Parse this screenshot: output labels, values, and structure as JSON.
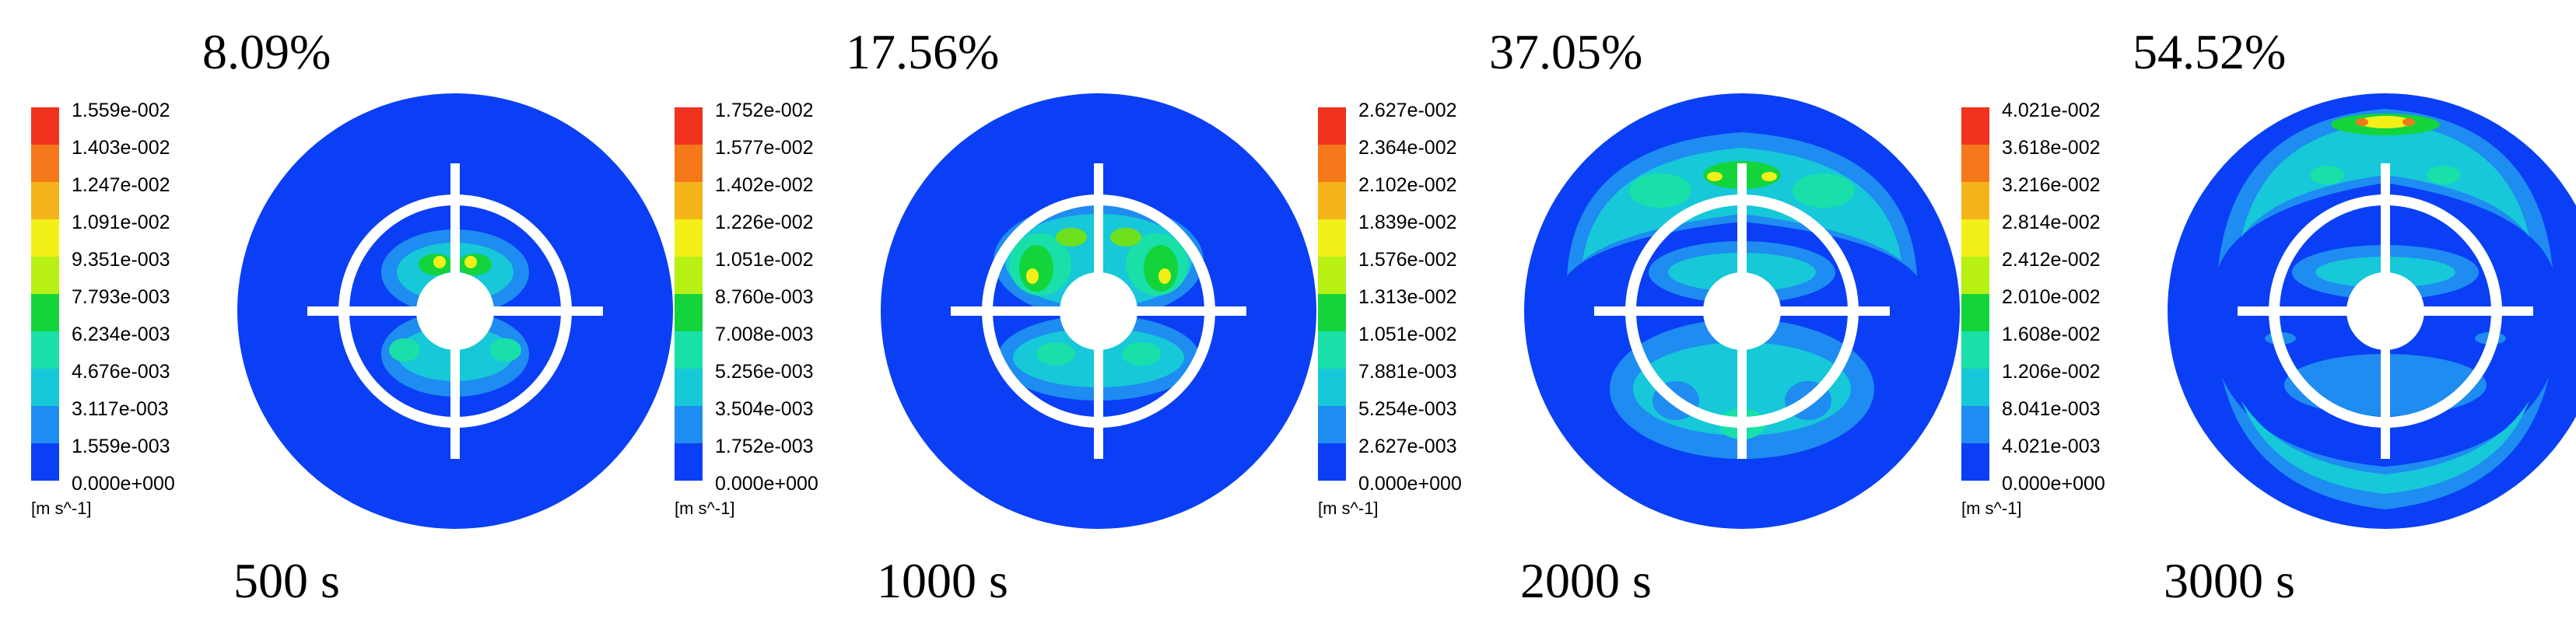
{
  "colors": {
    "background": "#0a3ff5",
    "scale": [
      "#0a3ff5",
      "#1e8cf0",
      "#16c8d8",
      "#18e0a8",
      "#14d43c",
      "#6ee01e",
      "#b8f014",
      "#f2f018",
      "#f5b41a",
      "#f5781a",
      "#f0321e"
    ],
    "fixture": "#ffffff"
  },
  "unit_label": "[m s^-1]",
  "panels": [
    {
      "percent": "8.09%",
      "time": "500 s",
      "legend": [
        "1.559e-002",
        "1.403e-002",
        "1.247e-002",
        "1.091e-002",
        "9.351e-003",
        "7.793e-003",
        "6.234e-003",
        "4.676e-003",
        "3.117e-003",
        "1.559e-003",
        "0.000e+000"
      ]
    },
    {
      "percent": "17.56%",
      "time": "1000 s",
      "legend": [
        "1.752e-002",
        "1.577e-002",
        "1.402e-002",
        "1.226e-002",
        "1.051e-002",
        "8.760e-003",
        "7.008e-003",
        "5.256e-003",
        "3.504e-003",
        "1.752e-003",
        "0.000e+000"
      ]
    },
    {
      "percent": "37.05%",
      "time": "2000 s",
      "legend": [
        "2.627e-002",
        "2.364e-002",
        "2.102e-002",
        "1.839e-002",
        "1.576e-002",
        "1.313e-002",
        "1.051e-002",
        "7.881e-003",
        "5.254e-003",
        "2.627e-003",
        "0.000e+000"
      ]
    },
    {
      "percent": "54.52%",
      "time": "3000 s",
      "legend": [
        "4.021e-002",
        "3.618e-002",
        "3.216e-002",
        "2.814e-002",
        "2.412e-002",
        "2.010e-002",
        "1.608e-002",
        "1.206e-002",
        "8.041e-003",
        "4.021e-003",
        "0.000e+000"
      ]
    }
  ]
}
